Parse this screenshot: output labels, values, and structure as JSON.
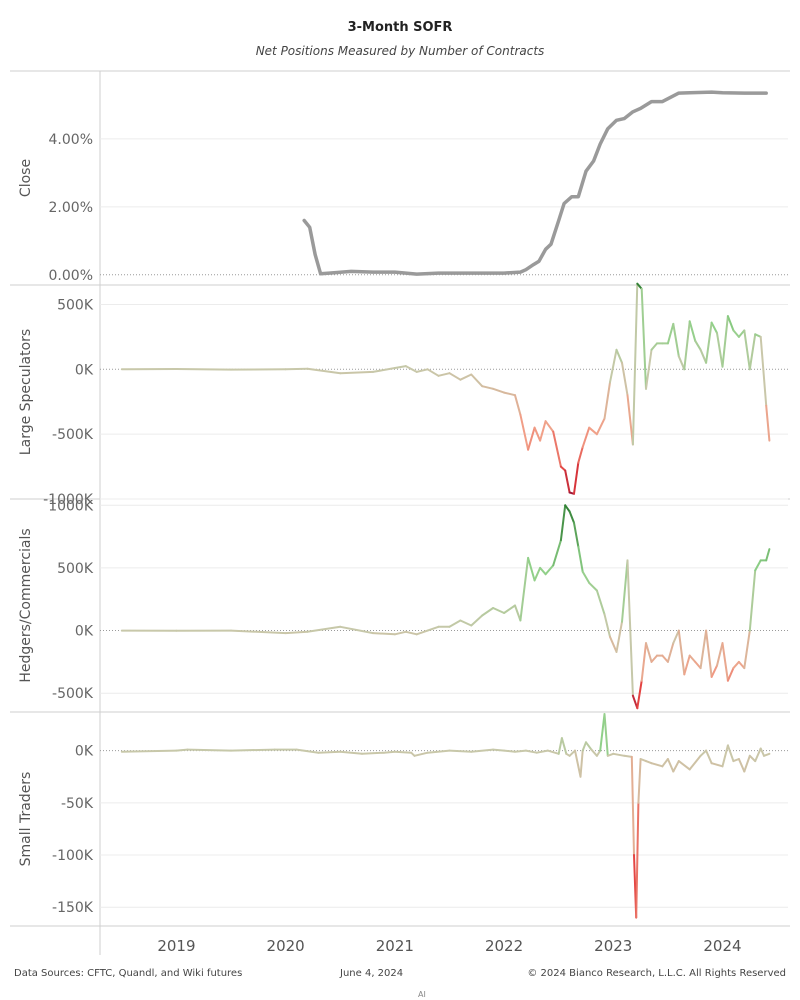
{
  "title": "3-Month SOFR",
  "subtitle": "Net Positions Measured by Number of Contracts",
  "footer": {
    "sources": "Data Sources: CFTC, Quandl, and Wiki futures",
    "date": "June 4, 2024",
    "copyright": "© 2024 Bianco Research, L.L.C. All Rights Reserved",
    "stub": "AI"
  },
  "colors": {
    "close_line": "#9a9a9a",
    "positive_dark": "#2e7d32",
    "positive_light": "#8fd088",
    "neutral": "#c8c8aa",
    "negative_light": "#f1a088",
    "negative_dark": "#e23b3b",
    "extreme_negative": "#9e1a3a"
  },
  "chart_data": [
    {
      "type": "line",
      "ylabel": "Close",
      "yticks": [
        "0.00%",
        "2.00%",
        "4.00%"
      ],
      "ylim": [
        -0.3,
        6.0
      ],
      "x": [
        2020.17,
        2020.22,
        2020.27,
        2020.32,
        2020.4,
        2020.6,
        2020.8,
        2021.0,
        2021.2,
        2021.4,
        2021.6,
        2021.8,
        2022.0,
        2022.15,
        2022.2,
        2022.27,
        2022.32,
        2022.38,
        2022.43,
        2022.5,
        2022.55,
        2022.62,
        2022.68,
        2022.75,
        2022.82,
        2022.88,
        2022.95,
        2023.03,
        2023.1,
        2023.18,
        2023.25,
        2023.35,
        2023.45,
        2023.6,
        2023.7,
        2023.9,
        2024.0,
        2024.2,
        2024.4
      ],
      "y": [
        1.6,
        1.4,
        0.6,
        0.03,
        0.05,
        0.1,
        0.08,
        0.08,
        0.02,
        0.05,
        0.05,
        0.05,
        0.05,
        0.08,
        0.15,
        0.3,
        0.4,
        0.75,
        0.9,
        1.6,
        2.1,
        2.3,
        2.3,
        3.05,
        3.35,
        3.85,
        4.3,
        4.55,
        4.6,
        4.8,
        4.9,
        5.1,
        5.1,
        5.35,
        5.36,
        5.38,
        5.36,
        5.35,
        5.35
      ]
    },
    {
      "type": "line",
      "ylabel": "Large Speculators",
      "yticks": [
        "-1000K",
        "-500K",
        "0K",
        "500K"
      ],
      "ylim": [
        -1000,
        650
      ],
      "x": [
        2018.5,
        2019.0,
        2019.5,
        2020.0,
        2020.2,
        2020.5,
        2020.8,
        2021.0,
        2021.1,
        2021.2,
        2021.3,
        2021.4,
        2021.5,
        2021.6,
        2021.7,
        2021.8,
        2021.9,
        2022.0,
        2022.1,
        2022.15,
        2022.22,
        2022.28,
        2022.33,
        2022.38,
        2022.45,
        2022.52,
        2022.56,
        2022.6,
        2022.64,
        2022.68,
        2022.72,
        2022.78,
        2022.85,
        2022.92,
        2022.97,
        2023.03,
        2023.08,
        2023.13,
        2023.18,
        2023.22,
        2023.26,
        2023.3,
        2023.35,
        2023.4,
        2023.45,
        2023.5,
        2023.55,
        2023.6,
        2023.65,
        2023.7,
        2023.75,
        2023.8,
        2023.85,
        2023.9,
        2023.95,
        2024.0,
        2024.05,
        2024.1,
        2024.15,
        2024.2,
        2024.25,
        2024.3,
        2024.35,
        2024.4,
        2024.43
      ],
      "y": [
        0,
        2,
        -2,
        0,
        5,
        -30,
        -20,
        10,
        25,
        -20,
        0,
        -50,
        -30,
        -80,
        -40,
        -130,
        -150,
        -180,
        -200,
        -350,
        -620,
        -450,
        -550,
        -400,
        -480,
        -750,
        -780,
        -950,
        -960,
        -720,
        -600,
        -450,
        -500,
        -380,
        -100,
        150,
        50,
        -200,
        -580,
        660,
        620,
        -150,
        150,
        200,
        200,
        200,
        350,
        100,
        0,
        370,
        220,
        150,
        50,
        360,
        280,
        20,
        410,
        300,
        250,
        300,
        0,
        270,
        250,
        -280,
        -550
      ]
    },
    {
      "type": "line",
      "ylabel": "Hedgers/Commercials",
      "yticks": [
        "-500K",
        "0K",
        "500K",
        "1000K"
      ],
      "ylim": [
        -650,
        1050
      ],
      "x": [
        2018.5,
        2019.0,
        2019.5,
        2020.0,
        2020.2,
        2020.5,
        2020.8,
        2021.0,
        2021.1,
        2021.2,
        2021.3,
        2021.4,
        2021.5,
        2021.6,
        2021.7,
        2021.8,
        2021.9,
        2022.0,
        2022.1,
        2022.15,
        2022.22,
        2022.28,
        2022.33,
        2022.38,
        2022.45,
        2022.52,
        2022.56,
        2022.6,
        2022.64,
        2022.68,
        2022.72,
        2022.78,
        2022.85,
        2022.92,
        2022.97,
        2023.03,
        2023.08,
        2023.13,
        2023.18,
        2023.22,
        2023.26,
        2023.3,
        2023.35,
        2023.4,
        2023.45,
        2023.5,
        2023.55,
        2023.6,
        2023.65,
        2023.7,
        2023.75,
        2023.8,
        2023.85,
        2023.9,
        2023.95,
        2024.0,
        2024.05,
        2024.1,
        2024.15,
        2024.2,
        2024.25,
        2024.3,
        2024.35,
        2024.4,
        2024.43
      ],
      "y": [
        0,
        -2,
        0,
        -20,
        -10,
        30,
        -20,
        -30,
        -10,
        -30,
        0,
        30,
        30,
        80,
        40,
        120,
        180,
        140,
        200,
        80,
        580,
        400,
        500,
        450,
        520,
        720,
        1000,
        950,
        860,
        670,
        470,
        380,
        320,
        130,
        -50,
        -170,
        70,
        560,
        -520,
        -620,
        -400,
        -100,
        -250,
        -200,
        -200,
        -250,
        -100,
        0,
        -350,
        -200,
        -250,
        -300,
        0,
        -370,
        -280,
        -100,
        -400,
        -300,
        -250,
        -300,
        0,
        480,
        560,
        560,
        650
      ]
    },
    {
      "type": "line",
      "ylabel": "Small Traders",
      "yticks": [
        "-150K",
        "-100K",
        "-50K",
        "0K"
      ],
      "ylim": [
        -168,
        37
      ],
      "x": [
        2018.5,
        2019.0,
        2019.1,
        2019.5,
        2019.9,
        2020.1,
        2020.3,
        2020.5,
        2020.7,
        2020.9,
        2021.0,
        2021.15,
        2021.18,
        2021.3,
        2021.5,
        2021.7,
        2021.9,
        2022.0,
        2022.1,
        2022.2,
        2022.3,
        2022.4,
        2022.5,
        2022.53,
        2022.57,
        2022.6,
        2022.65,
        2022.7,
        2022.72,
        2022.75,
        2022.8,
        2022.85,
        2022.88,
        2022.92,
        2022.95,
        2023.0,
        2023.1,
        2023.17,
        2023.19,
        2023.21,
        2023.23,
        2023.25,
        2023.3,
        2023.35,
        2023.45,
        2023.5,
        2023.55,
        2023.6,
        2023.7,
        2023.8,
        2023.85,
        2023.9,
        2024.0,
        2024.05,
        2024.1,
        2024.15,
        2024.2,
        2024.25,
        2024.3,
        2024.35,
        2024.38,
        2024.43
      ],
      "y": [
        -1,
        0,
        1,
        0,
        1,
        1,
        -2,
        -1,
        -3,
        -2,
        -1,
        -2,
        -5,
        -2,
        0,
        -1,
        1,
        0,
        -1,
        0,
        -2,
        0,
        -3,
        12,
        -3,
        -5,
        0,
        -25,
        0,
        8,
        1,
        -5,
        0,
        35,
        -5,
        -3,
        -5,
        -6,
        -100,
        -160,
        -50,
        -8,
        -10,
        -12,
        -15,
        -8,
        -20,
        -10,
        -18,
        -5,
        0,
        -12,
        -15,
        5,
        -10,
        -8,
        -20,
        -5,
        -10,
        2,
        -5,
        -3
      ]
    }
  ],
  "x_axis": {
    "ticks": [
      "2019",
      "2020",
      "2021",
      "2022",
      "2023",
      "2024"
    ],
    "range": [
      2018.3,
      2024.6
    ]
  }
}
